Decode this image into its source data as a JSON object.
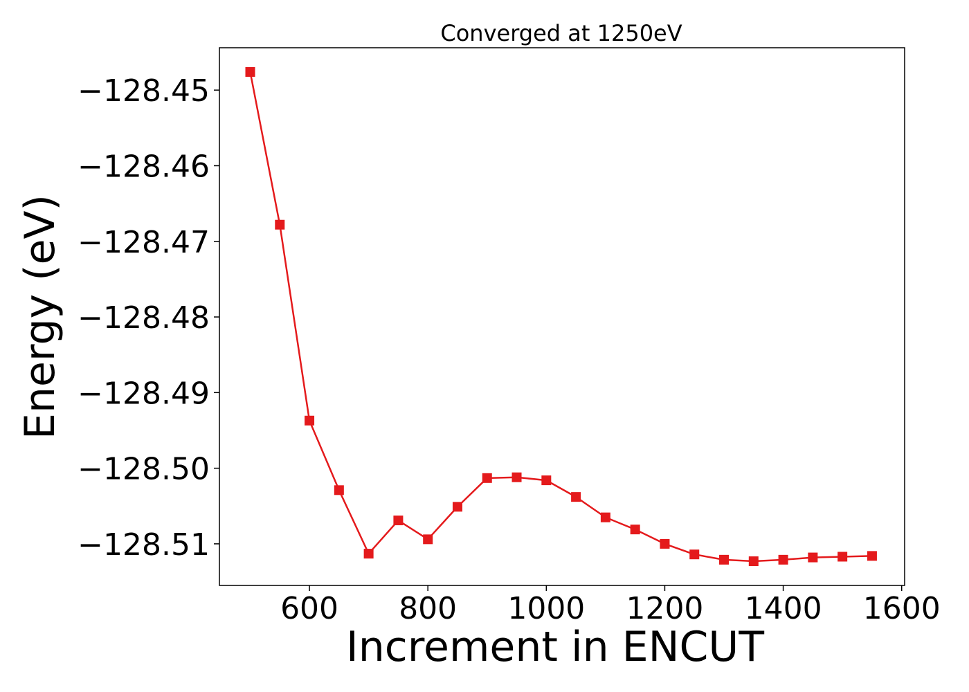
{
  "chart_data": {
    "type": "line",
    "title": "Converged at 1250eV",
    "xlabel": "Increment in ENCUT",
    "ylabel": "Energy (eV)",
    "xlim": [
      448,
      1605
    ],
    "ylim": [
      -128.5155,
      -128.4444
    ],
    "xticks": [
      600,
      800,
      1000,
      1200,
      1400,
      1600
    ],
    "xtick_labels": [
      "600",
      "800",
      "1000",
      "1200",
      "1400",
      "1600"
    ],
    "yticks": [
      -128.45,
      -128.46,
      -128.47,
      -128.48,
      -128.49,
      -128.5,
      -128.51
    ],
    "ytick_labels": [
      "−128.45",
      "−128.46",
      "−128.47",
      "−128.48",
      "−128.49",
      "−128.50",
      "−128.51"
    ],
    "grid": false,
    "series": [
      {
        "color": "#e41a1c",
        "marker": "square",
        "x": [
          500,
          550,
          600,
          650,
          700,
          750,
          800,
          850,
          900,
          950,
          1000,
          1050,
          1100,
          1150,
          1200,
          1250,
          1300,
          1350,
          1400,
          1450,
          1500,
          1550
        ],
        "y": [
          -128.4476,
          -128.4678,
          -128.4937,
          -128.5029,
          -128.5113,
          -128.5069,
          -128.5094,
          -128.5051,
          -128.5013,
          -128.5012,
          -128.5016,
          -128.5038,
          -128.5065,
          -128.5081,
          -128.51,
          -128.5114,
          -128.5121,
          -128.5123,
          -128.5121,
          -128.5118,
          -128.5117,
          -128.5116
        ]
      }
    ]
  }
}
